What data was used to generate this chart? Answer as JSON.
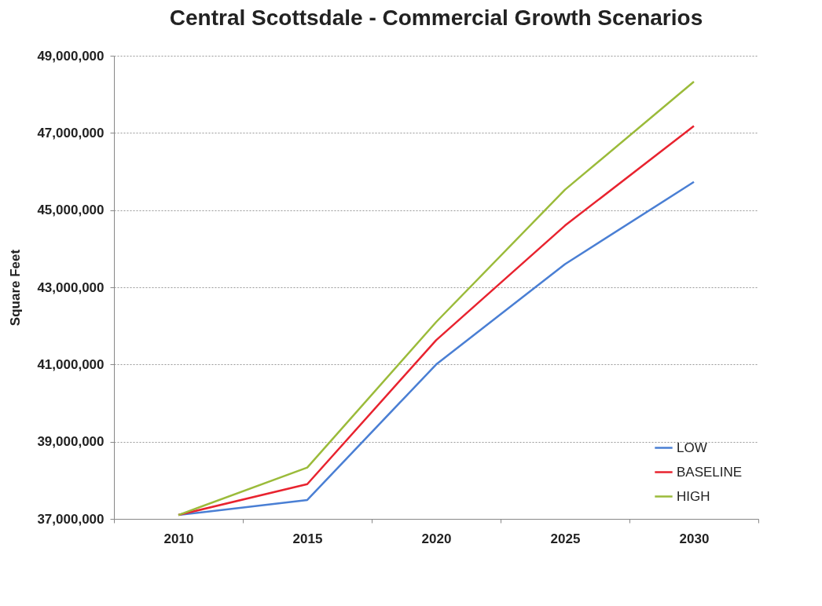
{
  "chart_data": {
    "type": "line",
    "title": "Central Scottsdale - Commercial Growth Scenarios",
    "ylabel": "Square Feet",
    "categories": [
      "2010",
      "2015",
      "2020",
      "2025",
      "2030"
    ],
    "series": [
      {
        "name": "LOW",
        "color": "#4a7fd4",
        "values": [
          37100000,
          37490000,
          41000000,
          43600000,
          45730000
        ]
      },
      {
        "name": "BASELINE",
        "color": "#e8232f",
        "values": [
          37100000,
          37900000,
          41630000,
          44600000,
          47180000
        ]
      },
      {
        "name": "HIGH",
        "color": "#9bbb3a",
        "values": [
          37100000,
          38330000,
          42100000,
          45530000,
          48330000
        ]
      }
    ],
    "ylim": [
      37000000,
      49000000
    ],
    "yticks": [
      {
        "value": 37000000,
        "label": "37,000,000"
      },
      {
        "value": 39000000,
        "label": "39,000,000"
      },
      {
        "value": 41000000,
        "label": "41,000,000"
      },
      {
        "value": 43000000,
        "label": "43,000,000"
      },
      {
        "value": 45000000,
        "label": "45,000,000"
      },
      {
        "value": 47000000,
        "label": "47,000,000"
      },
      {
        "value": 49000000,
        "label": "49,000,000"
      }
    ],
    "grid": "y",
    "legend": "bottom right",
    "marker": "none",
    "line_style": "solid"
  }
}
